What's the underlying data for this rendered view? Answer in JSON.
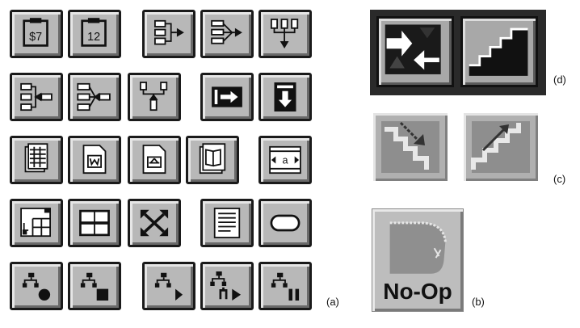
{
  "captions": {
    "a": "(a)",
    "b": "(b)",
    "c": "(c)",
    "d": "(d)"
  },
  "icons": {
    "clipboard_a_text": "$7",
    "clipboard_b_text": "12",
    "text_box_text": "a"
  },
  "noop": {
    "label": "No-Op"
  }
}
